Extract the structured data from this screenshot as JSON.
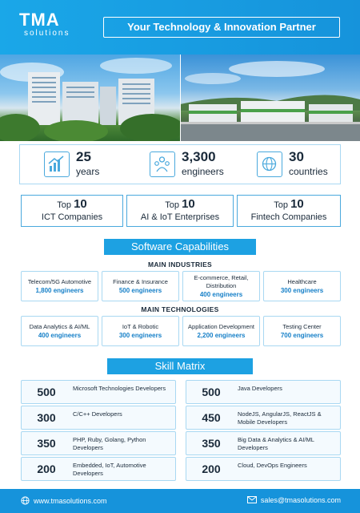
{
  "brand": {
    "name": "TMA",
    "sub": "solutions"
  },
  "tagline": "Your Technology & Innovation Partner",
  "photos": [
    "office-building-photo",
    "campus-photo"
  ],
  "stats": [
    {
      "value": "25",
      "label": "years",
      "icon": "growth-chart-icon"
    },
    {
      "value": "3,300",
      "label": "engineers",
      "icon": "team-icon"
    },
    {
      "value": "30",
      "label": "countries",
      "icon": "globe-icon"
    }
  ],
  "rankings": [
    {
      "prefix": "Top",
      "rank": "10",
      "label": "ICT Companies"
    },
    {
      "prefix": "Top",
      "rank": "10",
      "label": "AI & IoT Enterprises"
    },
    {
      "prefix": "Top",
      "rank": "10",
      "label": "Fintech Companies"
    }
  ],
  "capabilities": {
    "title": "Software Capabilities",
    "industries_heading": "MAIN INDUSTRIES",
    "industries": [
      {
        "name": "Telecom/5G Automotive",
        "engineers": "1,800 engineers"
      },
      {
        "name": "Finance & Insurance",
        "engineers": "500 engineers"
      },
      {
        "name": "E-commerce, Retail, Distribution",
        "engineers": "400 engineers"
      },
      {
        "name": "Healthcare",
        "engineers": "300 engineers"
      }
    ],
    "technologies_heading": "MAIN TECHNOLOGIES",
    "technologies": [
      {
        "name": "Data Analytics & AI/ML",
        "engineers": "400 engineers"
      },
      {
        "name": "IoT & Robotic",
        "engineers": "300 engineers"
      },
      {
        "name": "Application Development",
        "engineers": "2,200 engineers"
      },
      {
        "name": "Testing Center",
        "engineers": "700 engineers"
      }
    ]
  },
  "skill_matrix": {
    "title": "Skill Matrix",
    "left": [
      {
        "count": "500",
        "skill": "Microsoft Technologies Developers"
      },
      {
        "count": "300",
        "skill": "C/C++ Developers"
      },
      {
        "count": "350",
        "skill": "PHP, Ruby, Golang, Python Developers"
      },
      {
        "count": "200",
        "skill": "Embedded, IoT, Automotive Developers"
      }
    ],
    "right": [
      {
        "count": "500",
        "skill": "Java Developers"
      },
      {
        "count": "450",
        "skill": "NodeJS, AngularJS, ReactJS & Mobile Developers"
      },
      {
        "count": "350",
        "skill": "Big Data & Analytics & AI/ML Developers"
      },
      {
        "count": "200",
        "skill": "Cloud, DevOps Engineers"
      }
    ]
  },
  "footer": {
    "website": "www.tmasolutions.com",
    "email": "sales@tmasolutions.com"
  },
  "colors": {
    "primary": "#1da1e2",
    "dark": "#1693db",
    "border": "#a9d8f2",
    "accent_text": "#1780c8"
  }
}
